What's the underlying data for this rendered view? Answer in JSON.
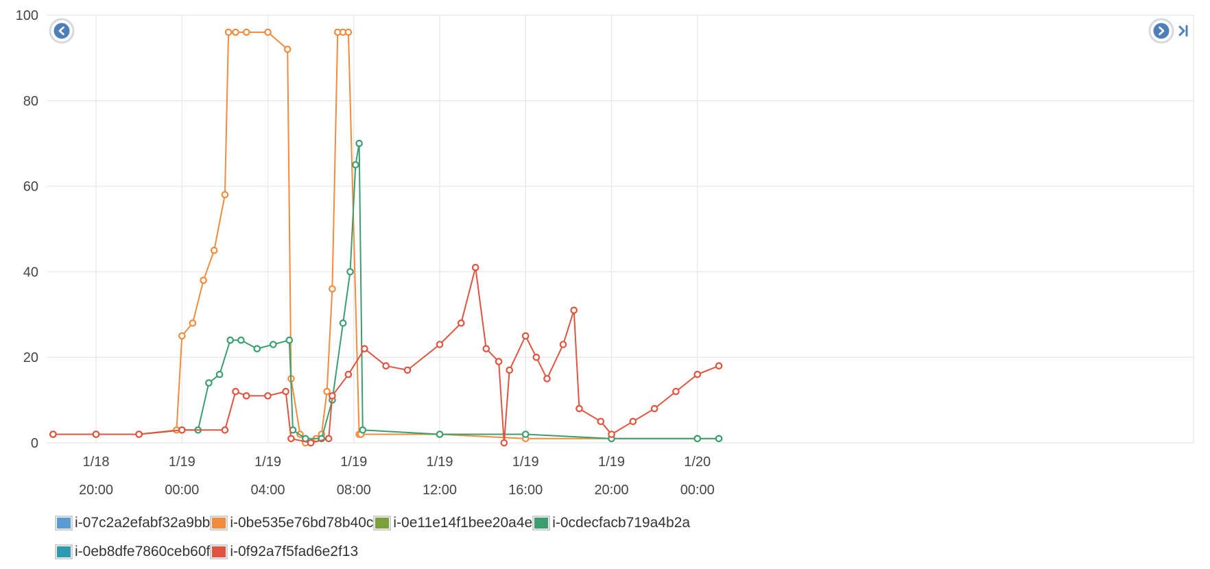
{
  "chart_data": {
    "type": "line",
    "title": "",
    "xlabel": "",
    "ylabel": "",
    "ylim": [
      0,
      100
    ],
    "y_ticks": [
      "0",
      "20",
      "40",
      "60",
      "80",
      "100"
    ],
    "x_range_hours": [
      -6.3,
      47.1
    ],
    "x_ticks": [
      {
        "date": "1/18",
        "time": "20:00"
      },
      {
        "date": "1/19",
        "time": "00:00"
      },
      {
        "date": "1/19",
        "time": "04:00"
      },
      {
        "date": "1/19",
        "time": "08:00"
      },
      {
        "date": "1/19",
        "time": "12:00"
      },
      {
        "date": "1/19",
        "time": "16:00"
      },
      {
        "date": "1/19",
        "time": "20:00"
      },
      {
        "date": "1/20",
        "time": "00:00"
      }
    ],
    "grid": true,
    "legend_position": "bottom-left",
    "series": [
      {
        "name": "i-07c2a2efabf32a9bb",
        "color": "#5b9bd5",
        "x": [],
        "values": []
      },
      {
        "name": "i-0be535e76bd78b40c",
        "color": "#f28b3c",
        "x": [
          "1/18 18:00",
          "1/18 20:00",
          "1/18 22:00",
          "1/18 23:45",
          "1/19 00:00",
          "1/19 00:30",
          "1/19 01:00",
          "1/19 01:30",
          "1/19 02:00",
          "1/19 02:10",
          "1/19 02:30",
          "1/19 03:00",
          "1/19 04:00",
          "1/19 04:55",
          "1/19 05:05",
          "1/19 05:30",
          "1/19 05:45",
          "1/19 06:15",
          "1/19 06:30",
          "1/19 06:45",
          "1/19 07:00",
          "1/19 07:15",
          "1/19 07:30",
          "1/19 07:45",
          "1/19 08:15",
          "1/19 08:20",
          "1/19 12:00",
          "1/19 16:00",
          "1/19 20:00",
          "1/20 00:00",
          "1/20 01:00"
        ],
        "values": [
          2,
          2,
          2,
          3,
          25,
          28,
          38,
          45,
          58,
          96,
          96,
          96,
          96,
          92,
          15,
          2,
          0,
          1,
          2,
          12,
          36,
          96,
          96,
          96,
          2,
          2,
          2,
          1,
          1,
          1,
          1
        ]
      },
      {
        "name": "i-0e11e14f1bee20a4e",
        "color": "#7aa03c",
        "x": [],
        "values": []
      },
      {
        "name": "i-0cdecfacb719a4b2a",
        "color": "#3a9e6e",
        "x": [
          "1/18 18:00",
          "1/18 20:00",
          "1/18 22:00",
          "1/19 00:00",
          "1/19 00:45",
          "1/19 01:15",
          "1/19 01:45",
          "1/19 02:15",
          "1/19 02:45",
          "1/19 03:30",
          "1/19 04:15",
          "1/19 05:00",
          "1/19 05:10",
          "1/19 05:45",
          "1/19 06:30",
          "1/19 07:00",
          "1/19 07:30",
          "1/19 07:50",
          "1/19 08:05",
          "1/19 08:15",
          "1/19 08:25",
          "1/19 12:00",
          "1/19 16:00",
          "1/19 20:00",
          "1/20 00:00",
          "1/20 01:00"
        ],
        "values": [
          2,
          2,
          2,
          3,
          3,
          14,
          16,
          24,
          24,
          22,
          23,
          24,
          3,
          1,
          1,
          10,
          28,
          40,
          65,
          70,
          3,
          2,
          2,
          1,
          1,
          1
        ]
      },
      {
        "name": "i-0eb8dfe7860ceb60f",
        "color": "#2a9bb0",
        "x": [],
        "values": []
      },
      {
        "name": "i-0f92a7f5fad6e2f13",
        "color": "#e0533f",
        "x": [
          "1/18 18:00",
          "1/18 20:00",
          "1/18 22:00",
          "1/19 00:00",
          "1/19 02:00",
          "1/19 02:30",
          "1/19 03:00",
          "1/19 04:00",
          "1/19 04:50",
          "1/19 05:05",
          "1/19 06:00",
          "1/19 06:50",
          "1/19 07:00",
          "1/19 07:45",
          "1/19 08:30",
          "1/19 09:30",
          "1/19 10:30",
          "1/19 12:00",
          "1/19 13:00",
          "1/19 13:40",
          "1/19 14:10",
          "1/19 14:45",
          "1/19 15:00",
          "1/19 15:15",
          "1/19 16:00",
          "1/19 16:30",
          "1/19 17:00",
          "1/19 17:45",
          "1/19 18:15",
          "1/19 18:30",
          "1/19 19:30",
          "1/19 20:00",
          "1/19 21:00",
          "1/19 22:00",
          "1/19 23:00",
          "1/20 00:00",
          "1/20 01:00"
        ],
        "values": [
          2,
          2,
          2,
          3,
          3,
          12,
          11,
          11,
          12,
          1,
          0,
          1,
          11,
          16,
          22,
          18,
          17,
          23,
          28,
          41,
          22,
          19,
          0,
          17,
          25,
          20,
          15,
          23,
          31,
          8,
          5,
          2,
          5,
          8,
          12,
          16,
          18
        ]
      }
    ]
  }
}
